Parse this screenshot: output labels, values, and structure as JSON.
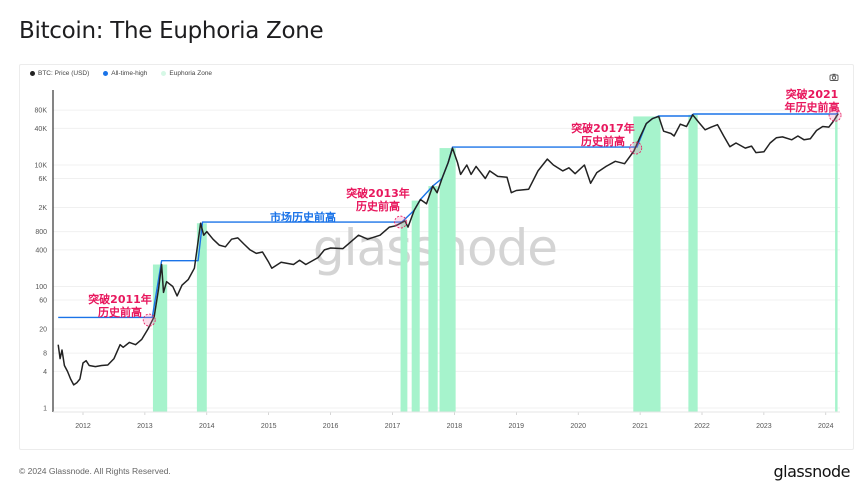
{
  "title": "Bitcoin: The Euphoria Zone",
  "legend": [
    {
      "label": "BTC: Price (USD)",
      "color": "#222222"
    },
    {
      "label": "All-time-high",
      "color": "#1a73e8"
    },
    {
      "label": "Euphoria Zone",
      "color": "#cff7e2"
    }
  ],
  "footer": "© 2024 Glassnode. All Rights Reserved.",
  "brand": "glassnode",
  "watermark": "glassnode",
  "chart_data": {
    "type": "line",
    "title": "Bitcoin: The Euphoria Zone",
    "yscale": "log",
    "ylim": [
      0.85,
      150000
    ],
    "xlim": [
      2011.55,
      2024.3
    ],
    "grid": true,
    "legend_position": "top-left",
    "x_ticks": [
      "2012",
      "2013",
      "2014",
      "2015",
      "2016",
      "2017",
      "2018",
      "2019",
      "2020",
      "2021",
      "2022",
      "2023",
      "2024"
    ],
    "y_ticks": [
      {
        "value": 1,
        "label": "1"
      },
      {
        "value": 4,
        "label": "4"
      },
      {
        "value": 8,
        "label": "8"
      },
      {
        "value": 20,
        "label": "20"
      },
      {
        "value": 60,
        "label": "60"
      },
      {
        "value": 100,
        "label": "100"
      },
      {
        "value": 400,
        "label": "400"
      },
      {
        "value": 800,
        "label": "800"
      },
      {
        "value": 2000,
        "label": "2K"
      },
      {
        "value": 6000,
        "label": "6K"
      },
      {
        "value": 10000,
        "label": "10K"
      },
      {
        "value": 40000,
        "label": "40K"
      },
      {
        "value": 80000,
        "label": "80K"
      }
    ],
    "series": [
      {
        "name": "BTC: Price (USD)",
        "color": "#222222",
        "points": [
          [
            2011.6,
            11
          ],
          [
            2011.63,
            6.5
          ],
          [
            2011.66,
            9
          ],
          [
            2011.7,
            5
          ],
          [
            2011.75,
            4
          ],
          [
            2011.8,
            3
          ],
          [
            2011.85,
            2.4
          ],
          [
            2011.9,
            2.6
          ],
          [
            2011.95,
            3
          ],
          [
            2012.0,
            5.5
          ],
          [
            2012.05,
            6
          ],
          [
            2012.1,
            5
          ],
          [
            2012.2,
            4.8
          ],
          [
            2012.3,
            5
          ],
          [
            2012.4,
            5.1
          ],
          [
            2012.5,
            6.5
          ],
          [
            2012.6,
            11
          ],
          [
            2012.65,
            10
          ],
          [
            2012.75,
            12
          ],
          [
            2012.85,
            11
          ],
          [
            2012.95,
            13.5
          ],
          [
            2013.05,
            20
          ],
          [
            2013.15,
            32
          ],
          [
            2013.22,
            90
          ],
          [
            2013.27,
            230
          ],
          [
            2013.3,
            80
          ],
          [
            2013.35,
            120
          ],
          [
            2013.45,
            100
          ],
          [
            2013.52,
            70
          ],
          [
            2013.6,
            105
          ],
          [
            2013.7,
            130
          ],
          [
            2013.8,
            200
          ],
          [
            2013.9,
            1100
          ],
          [
            2013.95,
            700
          ],
          [
            2014.0,
            800
          ],
          [
            2014.1,
            600
          ],
          [
            2014.2,
            480
          ],
          [
            2014.3,
            450
          ],
          [
            2014.4,
            600
          ],
          [
            2014.5,
            630
          ],
          [
            2014.6,
            500
          ],
          [
            2014.7,
            400
          ],
          [
            2014.8,
            350
          ],
          [
            2014.9,
            370
          ],
          [
            2015.0,
            250
          ],
          [
            2015.05,
            200
          ],
          [
            2015.2,
            250
          ],
          [
            2015.4,
            230
          ],
          [
            2015.5,
            270
          ],
          [
            2015.6,
            230
          ],
          [
            2015.8,
            300
          ],
          [
            2015.9,
            400
          ],
          [
            2016.0,
            430
          ],
          [
            2016.2,
            420
          ],
          [
            2016.45,
            700
          ],
          [
            2016.6,
            600
          ],
          [
            2016.8,
            700
          ],
          [
            2016.95,
            950
          ],
          [
            2017.05,
            1000
          ],
          [
            2017.2,
            1200
          ],
          [
            2017.25,
            950
          ],
          [
            2017.35,
            1800
          ],
          [
            2017.45,
            2700
          ],
          [
            2017.55,
            2300
          ],
          [
            2017.65,
            4500
          ],
          [
            2017.72,
            3500
          ],
          [
            2017.8,
            6000
          ],
          [
            2017.9,
            11000
          ],
          [
            2017.97,
            19000
          ],
          [
            2018.05,
            11000
          ],
          [
            2018.1,
            7000
          ],
          [
            2018.2,
            10000
          ],
          [
            2018.27,
            7000
          ],
          [
            2018.35,
            9500
          ],
          [
            2018.5,
            6000
          ],
          [
            2018.57,
            8000
          ],
          [
            2018.7,
            6500
          ],
          [
            2018.85,
            6300
          ],
          [
            2018.92,
            3500
          ],
          [
            2019.0,
            3800
          ],
          [
            2019.2,
            4000
          ],
          [
            2019.35,
            8000
          ],
          [
            2019.5,
            12500
          ],
          [
            2019.6,
            10000
          ],
          [
            2019.75,
            8000
          ],
          [
            2019.85,
            9000
          ],
          [
            2019.95,
            7200
          ],
          [
            2020.1,
            10000
          ],
          [
            2020.2,
            5000
          ],
          [
            2020.3,
            7500
          ],
          [
            2020.45,
            9500
          ],
          [
            2020.6,
            11500
          ],
          [
            2020.75,
            10500
          ],
          [
            2020.9,
            17000
          ],
          [
            2021.0,
            29000
          ],
          [
            2021.1,
            48000
          ],
          [
            2021.2,
            58000
          ],
          [
            2021.3,
            63000
          ],
          [
            2021.38,
            36000
          ],
          [
            2021.5,
            33000
          ],
          [
            2021.55,
            30000
          ],
          [
            2021.65,
            47000
          ],
          [
            2021.75,
            43000
          ],
          [
            2021.85,
            67000
          ],
          [
            2021.95,
            50000
          ],
          [
            2022.05,
            38000
          ],
          [
            2022.15,
            42000
          ],
          [
            2022.25,
            46000
          ],
          [
            2022.35,
            30000
          ],
          [
            2022.45,
            20000
          ],
          [
            2022.55,
            23000
          ],
          [
            2022.7,
            19000
          ],
          [
            2022.8,
            20500
          ],
          [
            2022.87,
            16000
          ],
          [
            2023.0,
            16500
          ],
          [
            2023.1,
            23000
          ],
          [
            2023.2,
            28000
          ],
          [
            2023.3,
            29000
          ],
          [
            2023.45,
            26000
          ],
          [
            2023.55,
            30000
          ],
          [
            2023.65,
            26000
          ],
          [
            2023.75,
            27000
          ],
          [
            2023.85,
            37000
          ],
          [
            2023.95,
            43000
          ],
          [
            2024.05,
            42000
          ],
          [
            2024.12,
            52000
          ],
          [
            2024.2,
            70000
          ]
        ]
      },
      {
        "name": "All-time-high",
        "color": "#1a73e8",
        "points": [
          [
            2011.6,
            31
          ],
          [
            2013.12,
            31
          ],
          [
            2013.27,
            266
          ],
          [
            2013.86,
            266
          ],
          [
            2013.93,
            1150
          ],
          [
            2017.15,
            1150
          ],
          [
            2017.35,
            1800
          ],
          [
            2017.45,
            2700
          ],
          [
            2017.65,
            4500
          ],
          [
            2017.8,
            6000
          ],
          [
            2017.9,
            11000
          ],
          [
            2017.97,
            19700
          ],
          [
            2020.95,
            19700
          ],
          [
            2021.1,
            48000
          ],
          [
            2021.2,
            58000
          ],
          [
            2021.3,
            64000
          ],
          [
            2021.82,
            64000
          ],
          [
            2021.86,
            69000
          ],
          [
            2024.16,
            69000
          ],
          [
            2024.2,
            72000
          ]
        ]
      }
    ],
    "euphoria_zones": [
      [
        2013.13,
        2013.36
      ],
      [
        2013.84,
        2014.0
      ],
      [
        2017.13,
        2017.24
      ],
      [
        2017.31,
        2017.44
      ],
      [
        2017.58,
        2017.73
      ],
      [
        2017.76,
        2018.02
      ],
      [
        2020.89,
        2021.33
      ],
      [
        2021.78,
        2021.93
      ],
      [
        2024.15,
        2024.19
      ]
    ],
    "annotations": [
      {
        "lines": [
          "突破2011年",
          "历史前高"
        ],
        "color": "#e8175d",
        "at": [
          2013.07,
          28
        ],
        "circle": true
      },
      {
        "lines": [
          "市场历史前高"
        ],
        "color": "#1a73e8",
        "at": [
          2015.6,
          1150
        ],
        "circle": false
      },
      {
        "lines": [
          "突破2013年",
          "历史前高"
        ],
        "color": "#e8175d",
        "at": [
          2017.13,
          1150
        ],
        "circle": true
      },
      {
        "lines": [
          "突破2017年",
          "历史前高"
        ],
        "color": "#e8175d",
        "at": [
          2020.93,
          19000
        ],
        "circle": true
      },
      {
        "lines": [
          "突破2021",
          "年历史前高"
        ],
        "color": "#e8175d",
        "at": [
          2024.15,
          66000
        ],
        "circle": true
      }
    ]
  }
}
